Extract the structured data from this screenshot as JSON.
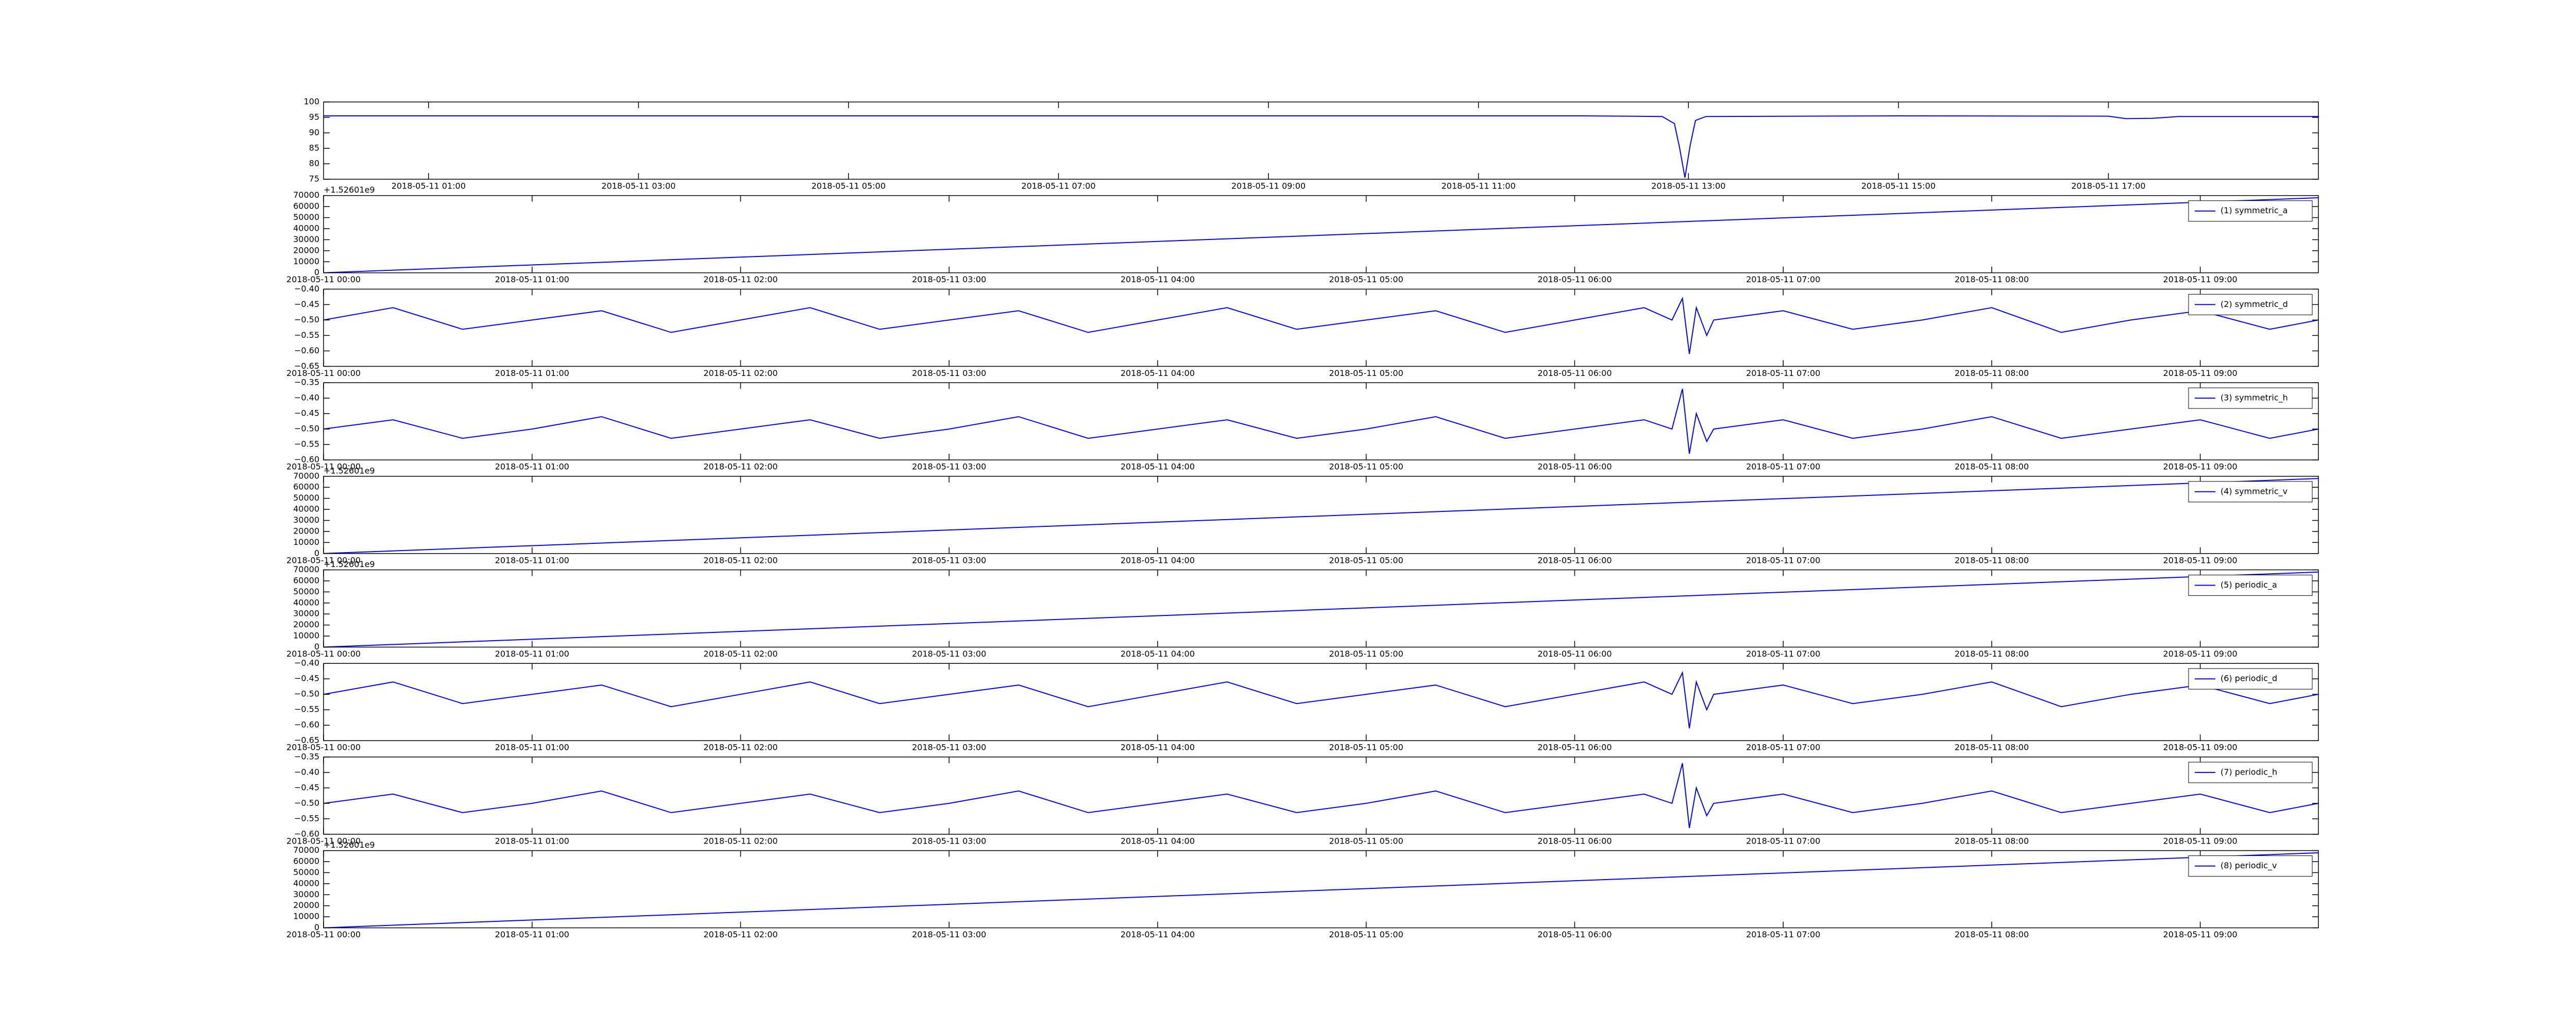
{
  "chart_data": [
    {
      "type": "line",
      "x": [
        "2018-05-11 00:00",
        "2018-05-11 06:00",
        "2018-05-11 12:00",
        "2018-05-11 12:45",
        "2018-05-11 12:52",
        "2018-05-11 12:55",
        "2018-05-11 12:58",
        "2018-05-11 13:01",
        "2018-05-11 13:04",
        "2018-05-11 13:10",
        "2018-05-11 15:00",
        "2018-05-11 17:00",
        "2018-05-11 17:10",
        "2018-05-11 17:25",
        "2018-05-11 17:40",
        "2018-05-11 19:00"
      ],
      "series": [
        {
          "color": "#0000ff",
          "values": [
            95.5,
            95.5,
            95.5,
            95.3,
            93,
            85,
            75.5,
            86,
            94,
            95.3,
            95.5,
            95.4,
            94.6,
            94.7,
            95.3,
            95.3
          ]
        }
      ],
      "xlim": [
        "2018-05-11 00:00",
        "2018-05-11 19:00"
      ],
      "ylim": [
        75,
        100
      ],
      "xticks": [
        "2018-05-11 01:00",
        "2018-05-11 03:00",
        "2018-05-11 05:00",
        "2018-05-11 07:00",
        "2018-05-11 09:00",
        "2018-05-11 11:00",
        "2018-05-11 13:00",
        "2018-05-11 15:00",
        "2018-05-11 17:00"
      ],
      "yticks": [
        75,
        80,
        85,
        90,
        95,
        100
      ]
    },
    {
      "type": "line",
      "x": [
        "2018-05-11 00:00",
        "2018-05-11 09:34"
      ],
      "series": [
        {
          "name": "(1) symmetric_a",
          "color": "#0000ff",
          "values": [
            0,
            68000
          ]
        }
      ],
      "legend": "upper right",
      "y_offset_text": "+1.52601e9",
      "xlim": [
        "2018-05-11 00:00",
        "2018-05-11 09:34"
      ],
      "ylim": [
        0,
        70000
      ],
      "xticks": [
        "2018-05-11 00:00",
        "2018-05-11 01:00",
        "2018-05-11 02:00",
        "2018-05-11 03:00",
        "2018-05-11 04:00",
        "2018-05-11 05:00",
        "2018-05-11 06:00",
        "2018-05-11 07:00",
        "2018-05-11 08:00",
        "2018-05-11 09:00"
      ],
      "yticks": [
        0,
        10000,
        20000,
        30000,
        40000,
        50000,
        60000,
        70000
      ]
    },
    {
      "type": "line",
      "x": [
        "2018-05-11 00:00",
        "2018-05-11 00:20",
        "2018-05-11 00:40",
        "2018-05-11 01:00",
        "2018-05-11 01:20",
        "2018-05-11 01:40",
        "2018-05-11 02:00",
        "2018-05-11 02:20",
        "2018-05-11 02:40",
        "2018-05-11 03:00",
        "2018-05-11 03:20",
        "2018-05-11 03:40",
        "2018-05-11 04:00",
        "2018-05-11 04:20",
        "2018-05-11 04:40",
        "2018-05-11 05:00",
        "2018-05-11 05:20",
        "2018-05-11 05:40",
        "2018-05-11 06:00",
        "2018-05-11 06:20",
        "2018-05-11 06:28",
        "2018-05-11 06:31",
        "2018-05-11 06:33",
        "2018-05-11 06:35",
        "2018-05-11 06:38",
        "2018-05-11 06:40",
        "2018-05-11 07:00",
        "2018-05-11 07:20",
        "2018-05-11 07:40",
        "2018-05-11 08:00",
        "2018-05-11 08:20",
        "2018-05-11 08:40",
        "2018-05-11 09:00",
        "2018-05-11 09:20",
        "2018-05-11 09:34"
      ],
      "series": [
        {
          "name": "(2) symmetric_d",
          "color": "#0000ff",
          "values": [
            -0.5,
            -0.46,
            -0.53,
            -0.5,
            -0.47,
            -0.54,
            -0.5,
            -0.46,
            -0.53,
            -0.5,
            -0.47,
            -0.54,
            -0.5,
            -0.46,
            -0.53,
            -0.5,
            -0.47,
            -0.54,
            -0.5,
            -0.46,
            -0.5,
            -0.43,
            -0.61,
            -0.46,
            -0.55,
            -0.5,
            -0.47,
            -0.53,
            -0.5,
            -0.46,
            -0.54,
            -0.5,
            -0.47,
            -0.53,
            -0.5
          ]
        }
      ],
      "legend": "upper right",
      "xlim": [
        "2018-05-11 00:00",
        "2018-05-11 09:34"
      ],
      "ylim": [
        -0.65,
        -0.4
      ],
      "xticks": [
        "2018-05-11 00:00",
        "2018-05-11 01:00",
        "2018-05-11 02:00",
        "2018-05-11 03:00",
        "2018-05-11 04:00",
        "2018-05-11 05:00",
        "2018-05-11 06:00",
        "2018-05-11 07:00",
        "2018-05-11 08:00",
        "2018-05-11 09:00"
      ],
      "yticks": [
        {
          "value": -0.65,
          "label": "−0.65"
        },
        {
          "value": -0.6,
          "label": "−0.60"
        },
        {
          "value": -0.55,
          "label": "−0.55"
        },
        {
          "value": -0.5,
          "label": "−0.50"
        },
        {
          "value": -0.45,
          "label": "−0.45"
        },
        {
          "value": -0.4,
          "label": "−0.40"
        }
      ]
    },
    {
      "type": "line",
      "x": [
        "2018-05-11 00:00",
        "2018-05-11 00:20",
        "2018-05-11 00:40",
        "2018-05-11 01:00",
        "2018-05-11 01:20",
        "2018-05-11 01:40",
        "2018-05-11 02:00",
        "2018-05-11 02:20",
        "2018-05-11 02:40",
        "2018-05-11 03:00",
        "2018-05-11 03:20",
        "2018-05-11 03:40",
        "2018-05-11 04:00",
        "2018-05-11 04:20",
        "2018-05-11 04:40",
        "2018-05-11 05:00",
        "2018-05-11 05:20",
        "2018-05-11 05:40",
        "2018-05-11 06:00",
        "2018-05-11 06:20",
        "2018-05-11 06:28",
        "2018-05-11 06:31",
        "2018-05-11 06:33",
        "2018-05-11 06:35",
        "2018-05-11 06:38",
        "2018-05-11 06:40",
        "2018-05-11 07:00",
        "2018-05-11 07:20",
        "2018-05-11 07:40",
        "2018-05-11 08:00",
        "2018-05-11 08:20",
        "2018-05-11 08:40",
        "2018-05-11 09:00",
        "2018-05-11 09:20",
        "2018-05-11 09:34"
      ],
      "series": [
        {
          "name": "(3) symmetric_h",
          "color": "#0000ff",
          "values": [
            -0.5,
            -0.47,
            -0.53,
            -0.5,
            -0.46,
            -0.53,
            -0.5,
            -0.47,
            -0.53,
            -0.5,
            -0.46,
            -0.53,
            -0.5,
            -0.47,
            -0.53,
            -0.5,
            -0.46,
            -0.53,
            -0.5,
            -0.47,
            -0.5,
            -0.37,
            -0.58,
            -0.45,
            -0.54,
            -0.5,
            -0.47,
            -0.53,
            -0.5,
            -0.46,
            -0.53,
            -0.5,
            -0.47,
            -0.53,
            -0.5
          ]
        }
      ],
      "legend": "upper right",
      "xlim": [
        "2018-05-11 00:00",
        "2018-05-11 09:34"
      ],
      "ylim": [
        -0.6,
        -0.35
      ],
      "xticks": [
        "2018-05-11 00:00",
        "2018-05-11 01:00",
        "2018-05-11 02:00",
        "2018-05-11 03:00",
        "2018-05-11 04:00",
        "2018-05-11 05:00",
        "2018-05-11 06:00",
        "2018-05-11 07:00",
        "2018-05-11 08:00",
        "2018-05-11 09:00"
      ],
      "yticks": [
        {
          "value": -0.6,
          "label": "−0.60"
        },
        {
          "value": -0.55,
          "label": "−0.55"
        },
        {
          "value": -0.5,
          "label": "−0.50"
        },
        {
          "value": -0.45,
          "label": "−0.45"
        },
        {
          "value": -0.4,
          "label": "−0.40"
        },
        {
          "value": -0.35,
          "label": "−0.35"
        }
      ]
    },
    {
      "type": "line",
      "x": [
        "2018-05-11 00:00",
        "2018-05-11 09:34"
      ],
      "series": [
        {
          "name": "(4) symmetric_v",
          "color": "#0000ff",
          "values": [
            0,
            68000
          ]
        }
      ],
      "legend": "upper right",
      "y_offset_text": "+1.52601e9",
      "xlim": [
        "2018-05-11 00:00",
        "2018-05-11 09:34"
      ],
      "ylim": [
        0,
        70000
      ],
      "xticks": [
        "2018-05-11 00:00",
        "2018-05-11 01:00",
        "2018-05-11 02:00",
        "2018-05-11 03:00",
        "2018-05-11 04:00",
        "2018-05-11 05:00",
        "2018-05-11 06:00",
        "2018-05-11 07:00",
        "2018-05-11 08:00",
        "2018-05-11 09:00"
      ],
      "yticks": [
        0,
        10000,
        20000,
        30000,
        40000,
        50000,
        60000,
        70000
      ]
    },
    {
      "type": "line",
      "x": [
        "2018-05-11 00:00",
        "2018-05-11 09:34"
      ],
      "series": [
        {
          "name": "(5) periodic_a",
          "color": "#0000ff",
          "values": [
            0,
            68000
          ]
        }
      ],
      "legend": "upper right",
      "y_offset_text": "+1.52601e9",
      "xlim": [
        "2018-05-11 00:00",
        "2018-05-11 09:34"
      ],
      "ylim": [
        0,
        70000
      ],
      "xticks": [
        "2018-05-11 00:00",
        "2018-05-11 01:00",
        "2018-05-11 02:00",
        "2018-05-11 03:00",
        "2018-05-11 04:00",
        "2018-05-11 05:00",
        "2018-05-11 06:00",
        "2018-05-11 07:00",
        "2018-05-11 08:00",
        "2018-05-11 09:00"
      ],
      "yticks": [
        0,
        10000,
        20000,
        30000,
        40000,
        50000,
        60000,
        70000
      ]
    },
    {
      "type": "line",
      "x": [
        "2018-05-11 00:00",
        "2018-05-11 00:20",
        "2018-05-11 00:40",
        "2018-05-11 01:00",
        "2018-05-11 01:20",
        "2018-05-11 01:40",
        "2018-05-11 02:00",
        "2018-05-11 02:20",
        "2018-05-11 02:40",
        "2018-05-11 03:00",
        "2018-05-11 03:20",
        "2018-05-11 03:40",
        "2018-05-11 04:00",
        "2018-05-11 04:20",
        "2018-05-11 04:40",
        "2018-05-11 05:00",
        "2018-05-11 05:20",
        "2018-05-11 05:40",
        "2018-05-11 06:00",
        "2018-05-11 06:20",
        "2018-05-11 06:28",
        "2018-05-11 06:31",
        "2018-05-11 06:33",
        "2018-05-11 06:35",
        "2018-05-11 06:38",
        "2018-05-11 06:40",
        "2018-05-11 07:00",
        "2018-05-11 07:20",
        "2018-05-11 07:40",
        "2018-05-11 08:00",
        "2018-05-11 08:20",
        "2018-05-11 08:40",
        "2018-05-11 09:00",
        "2018-05-11 09:20",
        "2018-05-11 09:34"
      ],
      "series": [
        {
          "name": "(6) periodic_d",
          "color": "#0000ff",
          "values": [
            -0.5,
            -0.46,
            -0.53,
            -0.5,
            -0.47,
            -0.54,
            -0.5,
            -0.46,
            -0.53,
            -0.5,
            -0.47,
            -0.54,
            -0.5,
            -0.46,
            -0.53,
            -0.5,
            -0.47,
            -0.54,
            -0.5,
            -0.46,
            -0.5,
            -0.43,
            -0.61,
            -0.46,
            -0.55,
            -0.5,
            -0.47,
            -0.53,
            -0.5,
            -0.46,
            -0.54,
            -0.5,
            -0.47,
            -0.53,
            -0.5
          ]
        }
      ],
      "legend": "upper right",
      "xlim": [
        "2018-05-11 00:00",
        "2018-05-11 09:34"
      ],
      "ylim": [
        -0.65,
        -0.4
      ],
      "xticks": [
        "2018-05-11 00:00",
        "2018-05-11 01:00",
        "2018-05-11 02:00",
        "2018-05-11 03:00",
        "2018-05-11 04:00",
        "2018-05-11 05:00",
        "2018-05-11 06:00",
        "2018-05-11 07:00",
        "2018-05-11 08:00",
        "2018-05-11 09:00"
      ],
      "yticks": [
        {
          "value": -0.65,
          "label": "−0.65"
        },
        {
          "value": -0.6,
          "label": "−0.60"
        },
        {
          "value": -0.55,
          "label": "−0.55"
        },
        {
          "value": -0.5,
          "label": "−0.50"
        },
        {
          "value": -0.45,
          "label": "−0.45"
        },
        {
          "value": -0.4,
          "label": "−0.40"
        }
      ]
    },
    {
      "type": "line",
      "x": [
        "2018-05-11 00:00",
        "2018-05-11 00:20",
        "2018-05-11 00:40",
        "2018-05-11 01:00",
        "2018-05-11 01:20",
        "2018-05-11 01:40",
        "2018-05-11 02:00",
        "2018-05-11 02:20",
        "2018-05-11 02:40",
        "2018-05-11 03:00",
        "2018-05-11 03:20",
        "2018-05-11 03:40",
        "2018-05-11 04:00",
        "2018-05-11 04:20",
        "2018-05-11 04:40",
        "2018-05-11 05:00",
        "2018-05-11 05:20",
        "2018-05-11 05:40",
        "2018-05-11 06:00",
        "2018-05-11 06:20",
        "2018-05-11 06:28",
        "2018-05-11 06:31",
        "2018-05-11 06:33",
        "2018-05-11 06:35",
        "2018-05-11 06:38",
        "2018-05-11 06:40",
        "2018-05-11 07:00",
        "2018-05-11 07:20",
        "2018-05-11 07:40",
        "2018-05-11 08:00",
        "2018-05-11 08:20",
        "2018-05-11 08:40",
        "2018-05-11 09:00",
        "2018-05-11 09:20",
        "2018-05-11 09:34"
      ],
      "series": [
        {
          "name": "(7) periodic_h",
          "color": "#0000ff",
          "values": [
            -0.5,
            -0.47,
            -0.53,
            -0.5,
            -0.46,
            -0.53,
            -0.5,
            -0.47,
            -0.53,
            -0.5,
            -0.46,
            -0.53,
            -0.5,
            -0.47,
            -0.53,
            -0.5,
            -0.46,
            -0.53,
            -0.5,
            -0.47,
            -0.5,
            -0.37,
            -0.58,
            -0.45,
            -0.54,
            -0.5,
            -0.47,
            -0.53,
            -0.5,
            -0.46,
            -0.53,
            -0.5,
            -0.47,
            -0.53,
            -0.5
          ]
        }
      ],
      "legend": "upper right",
      "xlim": [
        "2018-05-11 00:00",
        "2018-05-11 09:34"
      ],
      "ylim": [
        -0.6,
        -0.35
      ],
      "xticks": [
        "2018-05-11 00:00",
        "2018-05-11 01:00",
        "2018-05-11 02:00",
        "2018-05-11 03:00",
        "2018-05-11 04:00",
        "2018-05-11 05:00",
        "2018-05-11 06:00",
        "2018-05-11 07:00",
        "2018-05-11 08:00",
        "2018-05-11 09:00"
      ],
      "yticks": [
        {
          "value": -0.6,
          "label": "−0.60"
        },
        {
          "value": -0.55,
          "label": "−0.55"
        },
        {
          "value": -0.5,
          "label": "−0.50"
        },
        {
          "value": -0.45,
          "label": "−0.45"
        },
        {
          "value": -0.4,
          "label": "−0.40"
        },
        {
          "value": -0.35,
          "label": "−0.35"
        }
      ]
    },
    {
      "type": "line",
      "x": [
        "2018-05-11 00:00",
        "2018-05-11 09:34"
      ],
      "series": [
        {
          "name": "(8) periodic_v",
          "color": "#0000ff",
          "values": [
            0,
            68000
          ]
        }
      ],
      "legend": "upper right",
      "y_offset_text": "+1.52601e9",
      "xlim": [
        "2018-05-11 00:00",
        "2018-05-11 09:34"
      ],
      "ylim": [
        0,
        70000
      ],
      "xticks": [
        "2018-05-11 00:00",
        "2018-05-11 01:00",
        "2018-05-11 02:00",
        "2018-05-11 03:00",
        "2018-05-11 04:00",
        "2018-05-11 05:00",
        "2018-05-11 06:00",
        "2018-05-11 07:00",
        "2018-05-11 08:00",
        "2018-05-11 09:00"
      ],
      "yticks": [
        0,
        10000,
        20000,
        30000,
        40000,
        50000,
        60000,
        70000
      ]
    }
  ]
}
